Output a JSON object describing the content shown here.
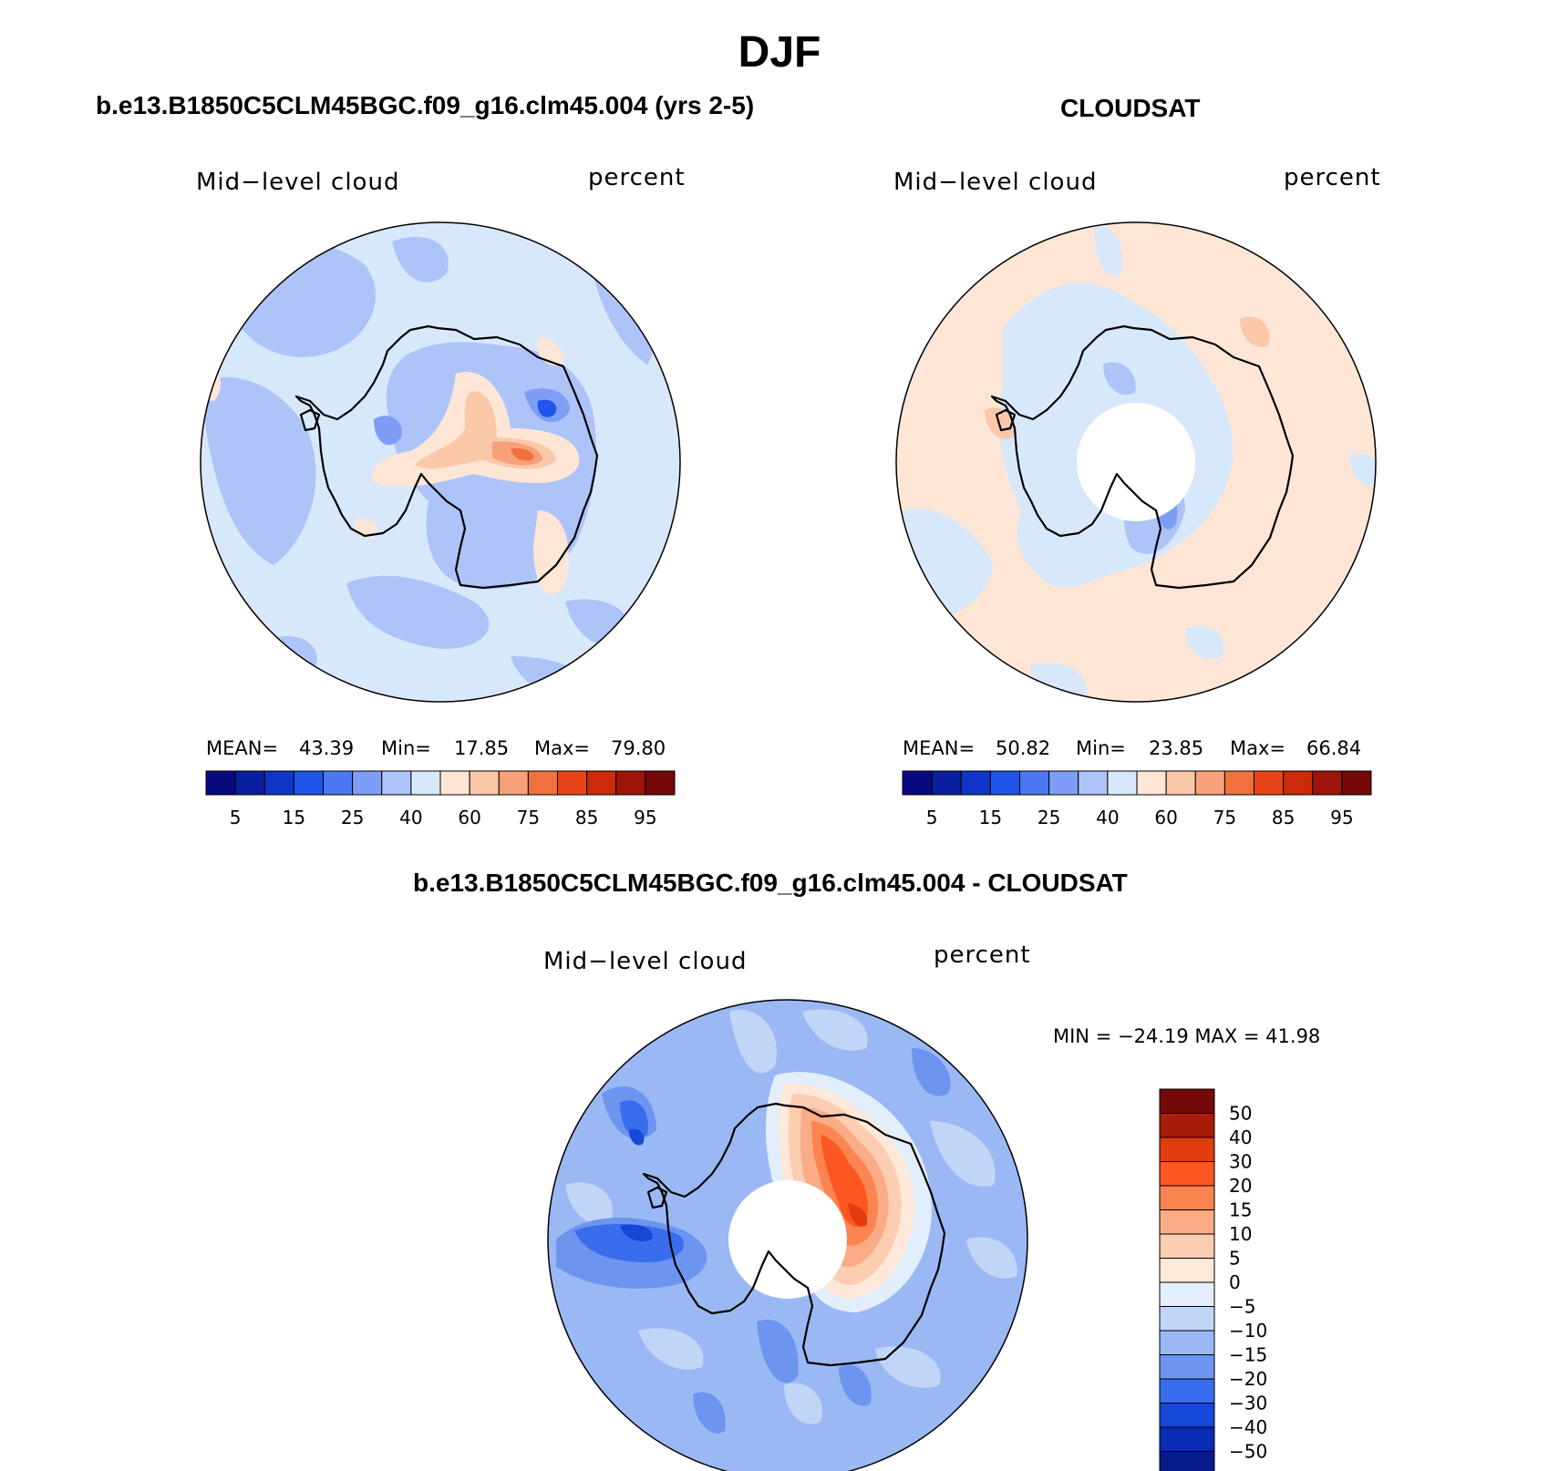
{
  "title": "DJF",
  "panels": [
    {
      "id": "model",
      "subtitle": "b.e13.B1850C5CLM45BGC.f09_g16.clm45.004 (yrs 2-5)",
      "variable": "Mid−level cloud",
      "units": "percent",
      "stats": {
        "mean_label": "MEAN=",
        "mean": "43.39",
        "min_label": "Min=",
        "min": "17.85",
        "max_label": "Max=",
        "max": "79.80"
      }
    },
    {
      "id": "obs",
      "subtitle": "CLOUDSAT",
      "variable": "Mid−level cloud",
      "units": "percent",
      "stats": {
        "mean_label": "MEAN=",
        "mean": "50.82",
        "min_label": "Min=",
        "min": "23.85",
        "max_label": "Max=",
        "max": "66.84"
      }
    },
    {
      "id": "diff",
      "subtitle": "b.e13.B1850C5CLM45BGC.f09_g16.clm45.004 - CLOUDSAT",
      "variable": "Mid−level cloud",
      "units": "percent",
      "minmax": "MIN = −24.19 MAX =   41.98"
    }
  ],
  "colorbar_abs": {
    "colors": [
      "#0a0a80",
      "#0a1fa0",
      "#0f35c8",
      "#1f55e8",
      "#4a78f0",
      "#7e9ef5",
      "#aec4f8",
      "#d8e8fb",
      "#fde6d6",
      "#fbc8aa",
      "#f7a07a",
      "#f0703e",
      "#e84418",
      "#cc2a0a",
      "#9e1408",
      "#760808"
    ],
    "tick_labels": [
      "5",
      "15",
      "25",
      "40",
      "60",
      "75",
      "85",
      "95"
    ]
  },
  "colorbar_diff": {
    "colors": [
      "#760808",
      "#a81c0a",
      "#e03c10",
      "#fc5722",
      "#fb8450",
      "#f9ac85",
      "#fccdb0",
      "#fde8d9",
      "#e3eefb",
      "#c1d5f7",
      "#9ab9f4",
      "#6d95f0",
      "#3a6ded",
      "#1548d8",
      "#0a2db5",
      "#091a8a"
    ],
    "tick_labels": [
      "50",
      "40",
      "30",
      "20",
      "15",
      "10",
      "5",
      "0",
      "−5",
      "−10",
      "−15",
      "−20",
      "−30",
      "−40",
      "−50"
    ]
  },
  "chart_data": [
    {
      "type": "heatmap",
      "title": "Mid−level cloud",
      "subtitle": "b.e13.B1850C5CLM45BGC.f09_g16.clm45.004 (yrs 2-5)",
      "units": "percent",
      "projection": "south-polar stereographic",
      "mean": 43.39,
      "min": 17.85,
      "max": 79.8,
      "levels": [
        5,
        10,
        15,
        20,
        25,
        30,
        40,
        50,
        60,
        70,
        75,
        80,
        85,
        90,
        95
      ],
      "legend": "bottom"
    },
    {
      "type": "heatmap",
      "title": "Mid−level cloud",
      "subtitle": "CLOUDSAT",
      "units": "percent",
      "projection": "south-polar stereographic",
      "mean": 50.82,
      "min": 23.85,
      "max": 66.84,
      "levels": [
        5,
        10,
        15,
        20,
        25,
        30,
        40,
        50,
        60,
        70,
        75,
        80,
        85,
        90,
        95
      ],
      "legend": "bottom"
    },
    {
      "type": "heatmap",
      "title": "Mid−level cloud",
      "subtitle": "b.e13.B1850C5CLM45BGC.f09_g16.clm45.004 - CLOUDSAT",
      "units": "percent",
      "projection": "south-polar stereographic",
      "min": -24.19,
      "max": 41.98,
      "levels": [
        -50,
        -40,
        -30,
        -20,
        -15,
        -10,
        -5,
        0,
        5,
        10,
        15,
        20,
        30,
        40,
        50
      ],
      "legend": "right"
    }
  ]
}
